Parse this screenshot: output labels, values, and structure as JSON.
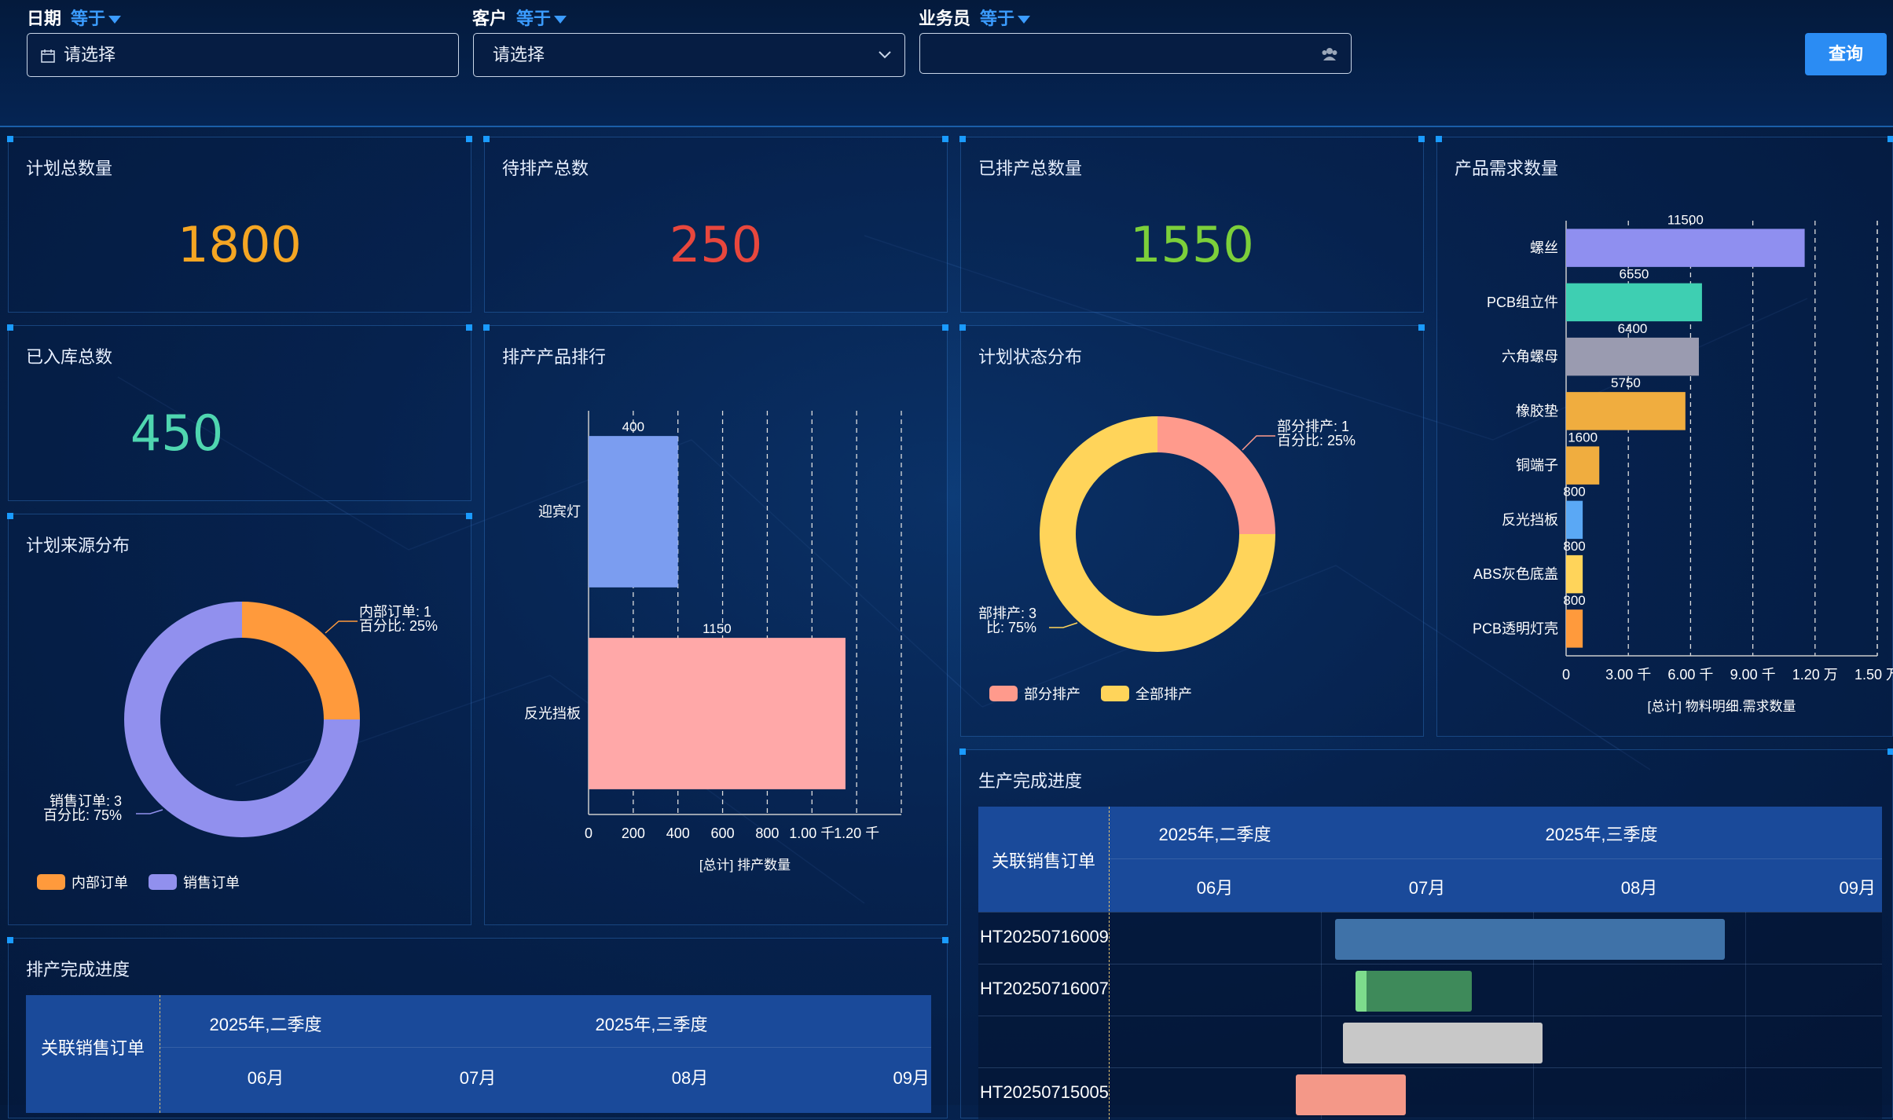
{
  "filters": {
    "date": {
      "label": "日期",
      "op": "等于",
      "placeholder": "请选择"
    },
    "customer": {
      "label": "客户",
      "op": "等于",
      "placeholder": "请选择"
    },
    "salesman": {
      "label": "业务员",
      "op": "等于",
      "value": ""
    },
    "query_label": "查询"
  },
  "kpi": {
    "plan_total": {
      "title": "计划总数量",
      "value": "1800",
      "color": "#f5a623"
    },
    "pending": {
      "title": "待排产总数",
      "value": "250",
      "color": "#e8473d"
    },
    "scheduled": {
      "title": "已排产总数量",
      "value": "1550",
      "color": "#7ccf3a"
    },
    "stored": {
      "title": "已入库总数",
      "value": "450",
      "color": "#4fd6b0"
    }
  },
  "panels": {
    "source_title": "计划来源分布",
    "ranking_title": "排产产品排行",
    "status_title": "计划状态分布",
    "demand_title": "产品需求数量",
    "sched_progress_title": "排产完成进度",
    "prod_progress_title": "生产完成进度"
  },
  "chart_data": [
    {
      "type": "pie",
      "name_key": "source",
      "labels": [
        "内部订单",
        "销售订单"
      ],
      "values": [
        1,
        3
      ],
      "colors": [
        "#ff9a3c",
        "#9190ee"
      ],
      "annotations": [
        {
          "line1": "内部订单: 1",
          "line2": "百分比: 25%"
        },
        {
          "line1": "销售订单: 3",
          "line2": "百分比: 75%"
        }
      ],
      "legend": "bottom-left"
    },
    {
      "type": "bar",
      "name_key": "ranking",
      "orientation": "horizontal",
      "categories": [
        "迎宾灯",
        "反光挡板"
      ],
      "values": [
        400,
        1150
      ],
      "colors": [
        "#7b9df0",
        "#ffa8a8"
      ],
      "xticks": [
        "0",
        "200",
        "400",
        "600",
        "800",
        "1.00 千",
        "1.20 千"
      ],
      "xmax": 1400,
      "xlabel": "[总计] 排产数量"
    },
    {
      "type": "pie",
      "name_key": "status",
      "labels": [
        "部分排产",
        "全部排产"
      ],
      "values": [
        1,
        3
      ],
      "colors": [
        "#ff9a8c",
        "#ffd45a"
      ],
      "annotations": [
        {
          "line1": "部分排产: 1",
          "line2": "百分比: 25%"
        },
        {
          "line1": "部排产: 3",
          "line2": "比: 75%"
        }
      ],
      "legend": "bottom-left"
    },
    {
      "type": "bar",
      "name_key": "demand",
      "orientation": "horizontal",
      "categories": [
        "螺丝",
        "PCB组立件",
        "六角螺母",
        "橡胶垫",
        "铜端子",
        "反光挡板",
        "ABS灰色底盖",
        "PCB透明灯壳"
      ],
      "values": [
        11500,
        6550,
        6400,
        5750,
        1600,
        800,
        800,
        800
      ],
      "colors": [
        "#8f8ff0",
        "#3ecfb2",
        "#9a9bb0",
        "#f0ad3f",
        "#f0ad3f",
        "#5aa8f5",
        "#ffd45a",
        "#ff9a3c"
      ],
      "xticks": [
        "0",
        "3.00 千",
        "6.00 千",
        "9.00 千",
        "1.20 万",
        "1.50 万"
      ],
      "xmax": 15000,
      "xlabel": "[总计] 物料明细.需求数量"
    }
  ],
  "sched_gantt": {
    "header": "关联销售订单",
    "quarters": [
      "2025年,二季度",
      "2025年,三季度"
    ],
    "months": [
      "06月",
      "07月",
      "08月",
      "09月"
    ]
  },
  "prod_gantt": {
    "header": "关联销售订单",
    "quarters": [
      "2025年,二季度",
      "2025年,三季度"
    ],
    "months": [
      "06月",
      "07月",
      "08月",
      "09月"
    ],
    "rows": [
      {
        "order": "HT20250716009",
        "color": "#3f72a8"
      },
      {
        "order": "HT20250716007",
        "color": "#3e8a5a"
      },
      {
        "order": "",
        "color": "#c8c8c8"
      },
      {
        "order": "HT20250715005",
        "color": "#f49888"
      }
    ]
  }
}
